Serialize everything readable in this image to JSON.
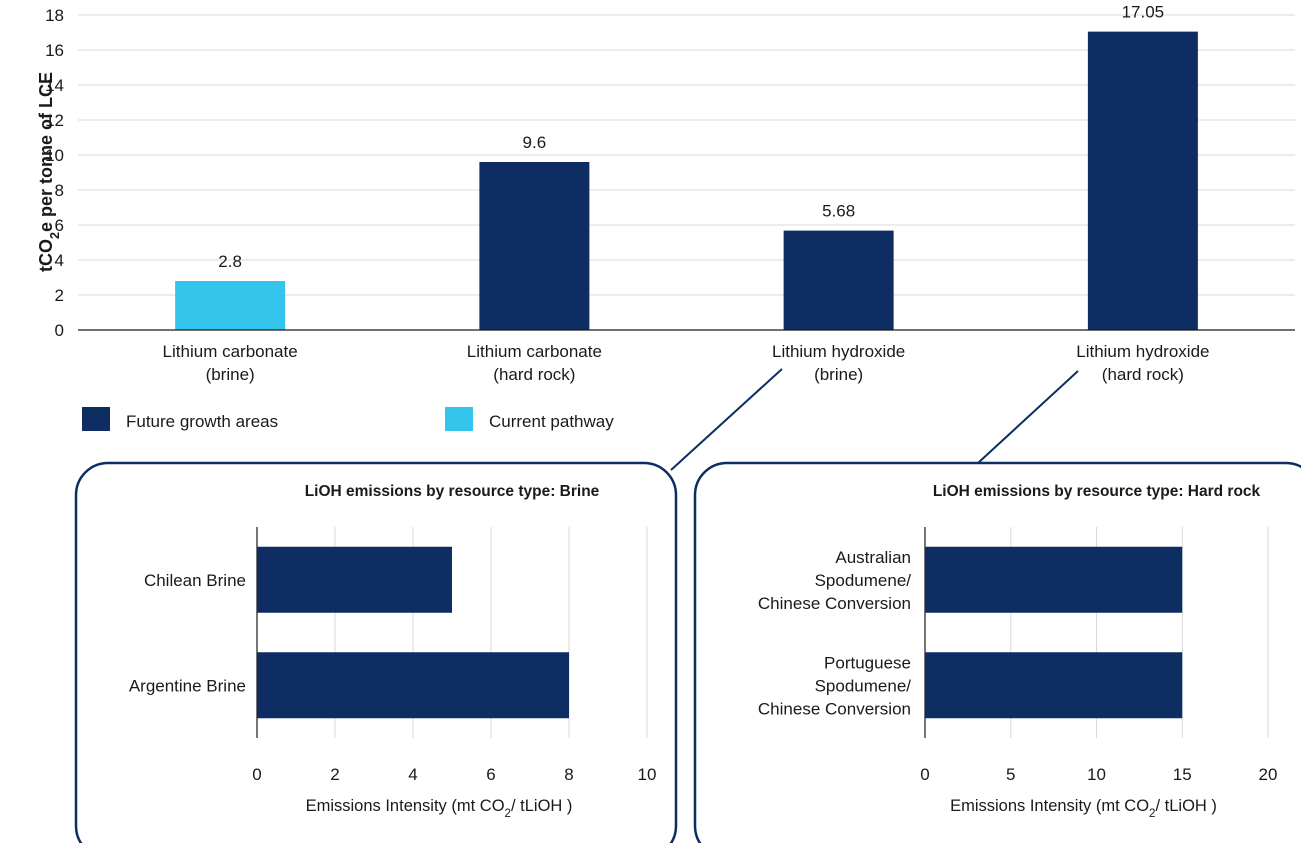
{
  "chart_data": [
    {
      "type": "bar",
      "ylabel": "tCO₂e per tonne of LCE",
      "ylim": [
        0,
        18
      ],
      "yticks": [
        0,
        2,
        4,
        6,
        8,
        10,
        12,
        14,
        16,
        18
      ],
      "grid": true,
      "categories": [
        [
          "Lithium carbonate",
          "(brine)"
        ],
        [
          "Lithium carbonate",
          "(hard rock)"
        ],
        [
          "Lithium hydroxide",
          "(brine)"
        ],
        [
          "Lithium hydroxide",
          "(hard rock)"
        ]
      ],
      "values": [
        2.8,
        9.6,
        5.68,
        17.05
      ],
      "value_labels": [
        "2.8",
        "9.6",
        "5.68",
        "17.05"
      ],
      "bar_series": [
        "Current pathway",
        "Future growth areas",
        "Future growth areas",
        "Future growth areas"
      ],
      "legend": [
        {
          "name": "Future growth areas",
          "color": "#0d2d63"
        },
        {
          "name": "Current pathway",
          "color": "#35c4ec"
        }
      ],
      "legend_placement": "bottom-left"
    },
    {
      "type": "bar",
      "orientation": "horizontal",
      "title": "LiOH emissions by resource type: Brine",
      "xlabel": "Emissions Intensity (mt CO₂/ tLiOH )",
      "xlim": [
        0,
        10
      ],
      "xticks": [
        0,
        2,
        4,
        6,
        8,
        10
      ],
      "grid": true,
      "categories": [
        [
          "Chilean Brine"
        ],
        [
          "Argentine Brine"
        ]
      ],
      "values": [
        5,
        8
      ],
      "color": "#0d2d63"
    },
    {
      "type": "bar",
      "orientation": "horizontal",
      "title": "LiOH emissions by resource type: Hard rock",
      "xlabel": "Emissions Intensity (mt CO₂/ tLiOH )",
      "xlim": [
        0,
        20
      ],
      "xticks": [
        0,
        5,
        10,
        15,
        20
      ],
      "grid": true,
      "categories": [
        [
          "Australian",
          "Spodumene/",
          "Chinese Conversion"
        ],
        [
          "Portuguese",
          "Spodumene/",
          "Chinese Conversion"
        ]
      ],
      "values": [
        15,
        15
      ],
      "color": "#0d2d63"
    }
  ]
}
